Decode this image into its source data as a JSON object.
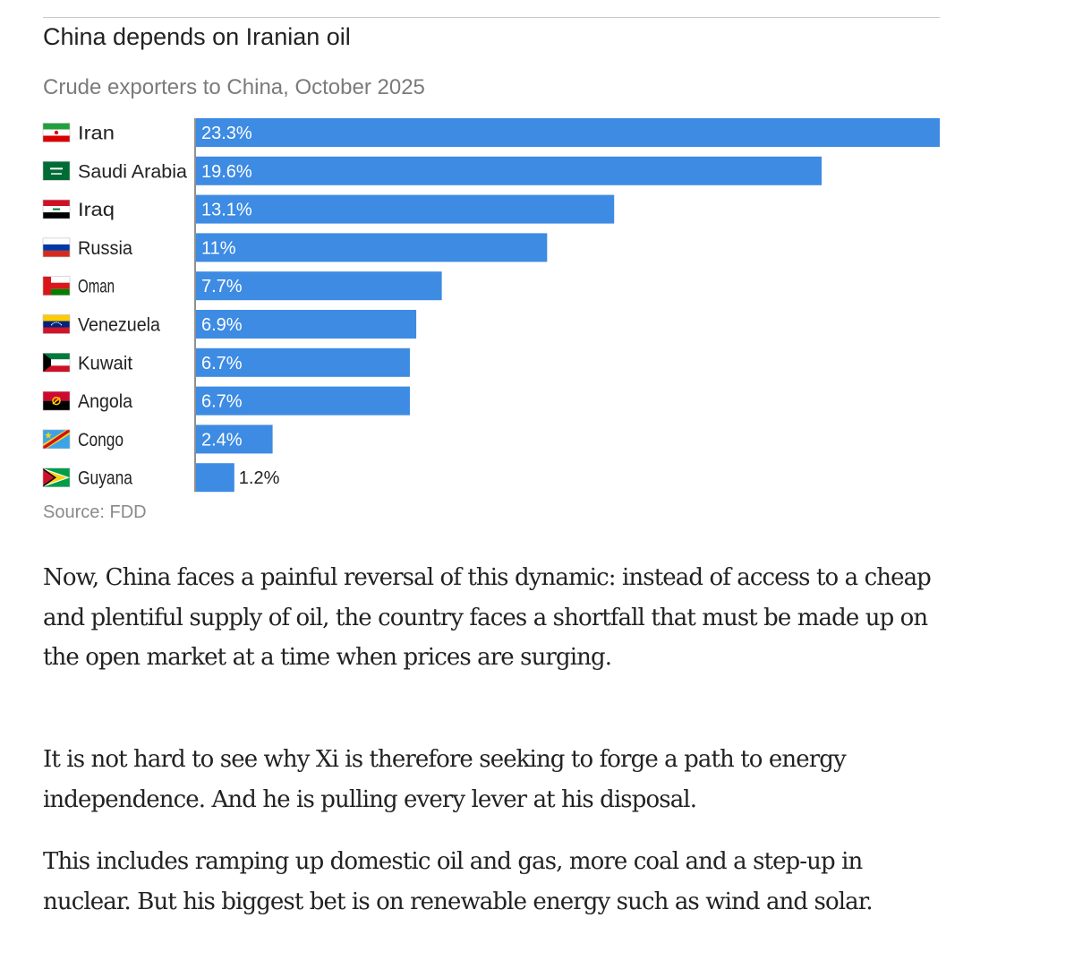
{
  "chart_data": {
    "type": "bar",
    "orientation": "horizontal",
    "title": "China depends on Iranian oil",
    "subtitle": "Crude exporters to China, October 2025",
    "categories": [
      "Iran",
      "Saudi Arabia",
      "Iraq",
      "Russia",
      "Oman",
      "Venezuela",
      "Kuwait",
      "Angola",
      "Congo",
      "Guyana"
    ],
    "values": [
      23.3,
      19.6,
      13.1,
      11,
      7.7,
      6.9,
      6.7,
      6.7,
      2.4,
      1.2
    ],
    "value_labels": [
      "23.3%",
      "19.6%",
      "13.1%",
      "11%",
      "7.7%",
      "6.9%",
      "6.7%",
      "6.7%",
      "2.4%",
      "1.2%"
    ],
    "flag_icons": [
      "iran-flag-icon",
      "saudi-arabia-flag-icon",
      "iraq-flag-icon",
      "russia-flag-icon",
      "oman-flag-icon",
      "venezuela-flag-icon",
      "kuwait-flag-icon",
      "angola-flag-icon",
      "congo-flag-icon",
      "guyana-flag-icon"
    ],
    "xlim": [
      0,
      23.3
    ],
    "xlabel": "",
    "ylabel": "",
    "grid": false,
    "legend": "none",
    "bar_color": "#3d8be3",
    "source": "Source: FDD"
  },
  "article": {
    "paragraphs": [
      "Now, China faces a painful reversal of this dynamic: instead of access to a cheap and plentiful supply of oil, the country faces a shortfall that must be made up on the open market at a time when prices are surging.",
      "It is not hard to see why Xi is therefore seeking to forge a path to energy independence. And he is pulling every lever at his disposal.",
      "This includes ramping up domestic oil and gas, more coal and a step-up in nuclear. But his biggest bet is on renewable energy such as wind and solar."
    ]
  },
  "colors": {
    "bar": "#3d8be3",
    "text": "#222222",
    "muted": "#7b7b7b",
    "rule": "#c8c8c8"
  }
}
